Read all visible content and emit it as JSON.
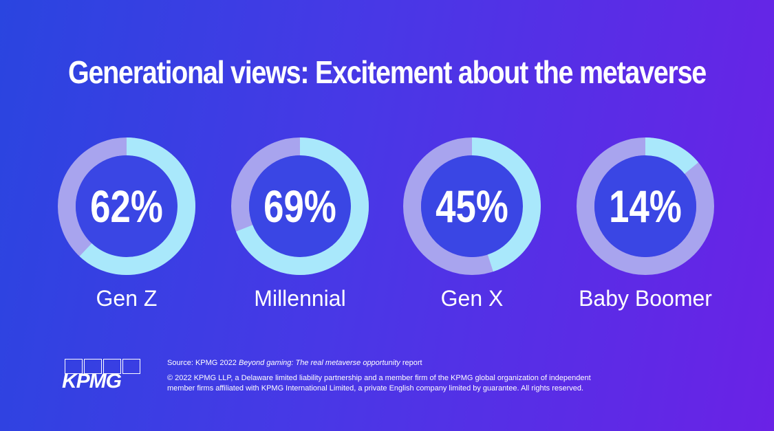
{
  "title": "Generational views: Excitement about the metaverse",
  "chart_data": {
    "type": "pie",
    "title": "Generational views: Excitement about the metaverse",
    "categories": [
      "Gen Z",
      "Millennial",
      "Gen X",
      "Baby Boomer"
    ],
    "values": [
      62,
      69,
      45,
      14
    ],
    "value_labels": [
      "62%",
      "69%",
      "45%",
      "14%"
    ],
    "unit": "%",
    "style": "donut",
    "colors": {
      "filled": "#a9e8fb",
      "remainder": "#a8a4ee",
      "center": "#3a46e4"
    }
  },
  "footer": {
    "source_prefix": "Source: KPMG 2022 ",
    "source_title": "Beyond gaming: The real metaverse opportunity",
    "source_suffix": " report",
    "copyright_line1": "© 2022 KPMG LLP, a Delaware limited liability partnership and a member firm of the KPMG global organization of independent",
    "copyright_line2": "member firms affiliated with KPMG International Limited, a private English company limited by guarantee. All rights reserved."
  },
  "logo": {
    "text": "KPMG"
  }
}
